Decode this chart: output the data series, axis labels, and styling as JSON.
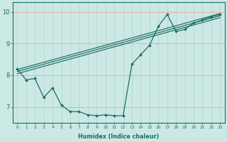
{
  "xlabel": "Humidex (Indice chaleur)",
  "xlim": [
    -0.5,
    23.5
  ],
  "ylim": [
    6.5,
    10.3
  ],
  "xticks": [
    0,
    1,
    2,
    3,
    4,
    5,
    6,
    7,
    8,
    9,
    10,
    11,
    12,
    13,
    14,
    15,
    16,
    17,
    18,
    19,
    20,
    21,
    22,
    23
  ],
  "yticks": [
    7,
    8,
    9,
    10
  ],
  "bg_color": "#cce8e4",
  "line_color": "#1a6e62",
  "grid_color_h": "#e8aaaa",
  "grid_color_v": "#aad4ce",
  "lines": [
    {
      "x": [
        0,
        1,
        2,
        3,
        4,
        5,
        6,
        7,
        8,
        9,
        10,
        11,
        12,
        13,
        14,
        15,
        16,
        17,
        18,
        19,
        20,
        21,
        22,
        23
      ],
      "y": [
        8.2,
        7.85,
        7.9,
        7.3,
        7.6,
        7.05,
        6.85,
        6.85,
        6.75,
        6.72,
        6.75,
        6.72,
        6.72,
        8.35,
        8.65,
        8.95,
        9.55,
        9.92,
        9.38,
        9.45,
        9.65,
        9.75,
        9.85,
        9.92
      ]
    },
    {
      "x": [
        0,
        23
      ],
      "y": [
        8.05,
        9.82
      ]
    },
    {
      "x": [
        0,
        23
      ],
      "y": [
        8.12,
        9.88
      ]
    },
    {
      "x": [
        0,
        23
      ],
      "y": [
        8.18,
        9.95
      ]
    }
  ]
}
